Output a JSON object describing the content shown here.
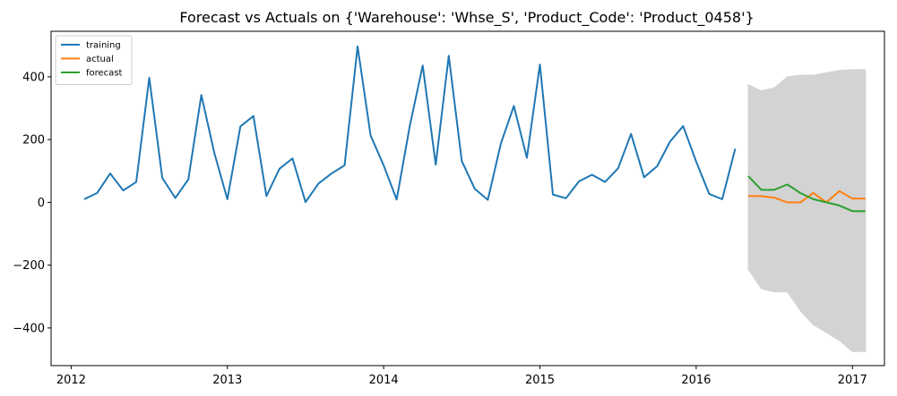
{
  "chart_data": {
    "type": "line",
    "title": "Forecast vs Actuals on {'Warehouse': 'Whse_S', 'Product_Code': 'Product_0458'}",
    "xlabel": "",
    "ylabel": "",
    "x_ticks": [
      "2012",
      "2013",
      "2014",
      "2015",
      "2016",
      "2017"
    ],
    "y_ticks": [
      -400,
      -200,
      0,
      200,
      400
    ],
    "ylim": [
      -520,
      545
    ],
    "xlim": [
      "2011-11-15",
      "2017-03-15"
    ],
    "grid": false,
    "legend_position": "top-left",
    "series": [
      {
        "name": "training",
        "color": "#1f77b4",
        "x": [
          "2012-02",
          "2012-03",
          "2012-04",
          "2012-05",
          "2012-06",
          "2012-07",
          "2012-08",
          "2012-09",
          "2012-10",
          "2012-11",
          "2012-12",
          "2013-01",
          "2013-02",
          "2013-03",
          "2013-04",
          "2013-05",
          "2013-06",
          "2013-07",
          "2013-08",
          "2013-09",
          "2013-10",
          "2013-11",
          "2013-12",
          "2014-01",
          "2014-02",
          "2014-03",
          "2014-04",
          "2014-05",
          "2014-06",
          "2014-07",
          "2014-08",
          "2014-09",
          "2014-10",
          "2014-11",
          "2014-12",
          "2015-01",
          "2015-02",
          "2015-03",
          "2015-04",
          "2015-05",
          "2015-06",
          "2015-07",
          "2015-08",
          "2015-09",
          "2015-10",
          "2015-11",
          "2015-12",
          "2016-01",
          "2016-02",
          "2016-03",
          "2016-04"
        ],
        "y": [
          10,
          30,
          92,
          38,
          65,
          397,
          78,
          14,
          73,
          342,
          157,
          10,
          242,
          275,
          20,
          107,
          140,
          1,
          60,
          92,
          118,
          497,
          213,
          118,
          9,
          242,
          436,
          120,
          467,
          132,
          43,
          8,
          187,
          307,
          142,
          439,
          25,
          13,
          67,
          88,
          65,
          108,
          218,
          80,
          115,
          194,
          243,
          130,
          27,
          10,
          171
        ]
      },
      {
        "name": "actual",
        "color": "#ff7f0e",
        "x": [
          "2016-05",
          "2016-06",
          "2016-07",
          "2016-08",
          "2016-09",
          "2016-10",
          "2016-11",
          "2016-12",
          "2017-01",
          "2017-02"
        ],
        "y": [
          20,
          20,
          15,
          0,
          0,
          30,
          0,
          36,
          12,
          12
        ]
      },
      {
        "name": "forecast",
        "color": "#2ca02c",
        "x": [
          "2016-05",
          "2016-06",
          "2016-07",
          "2016-08",
          "2016-09",
          "2016-10",
          "2016-11",
          "2016-12",
          "2017-01",
          "2017-02"
        ],
        "y": [
          84,
          40,
          40,
          57,
          30,
          10,
          0,
          -10,
          -28,
          -28
        ]
      }
    ],
    "confidence_band": {
      "color": "#d3d3d3",
      "x": [
        "2016-05",
        "2016-06",
        "2016-07",
        "2016-08",
        "2016-09",
        "2016-10",
        "2016-11",
        "2016-12",
        "2017-01",
        "2017-02"
      ],
      "lower": [
        -213,
        -275,
        -285,
        -285,
        -345,
        -390,
        -415,
        -440,
        -475,
        -475
      ],
      "upper": [
        375,
        355,
        365,
        400,
        405,
        405,
        413,
        420,
        423,
        423
      ]
    }
  }
}
